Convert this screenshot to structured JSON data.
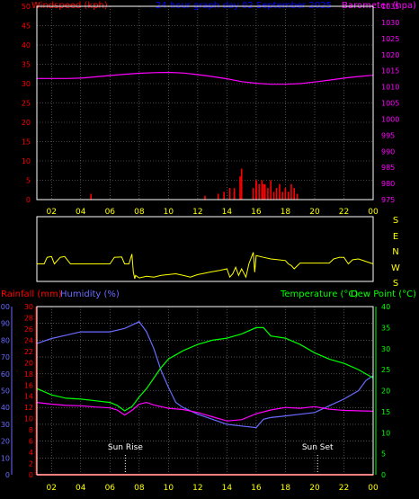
{
  "header": {
    "windspeed_label": "Windspeed (kph)",
    "title": "24 hour graph day  02 September 2025",
    "barometer_label": "Barometer (hpa)"
  },
  "wind_dir_labels": [
    "S",
    "E",
    "N",
    "W",
    "S"
  ],
  "bottom_labels": {
    "rainfall": "Rainfall (mm)",
    "humidity": "Humidity (%)",
    "temperature": "Temperature (°C)",
    "dewpoint": "Dew Point (°C)",
    "sun_rise": "Sun Rise",
    "sun_set": "Sun Set"
  },
  "colors": {
    "background": "#000000",
    "grid": "#808080",
    "frame": "#ffffff",
    "windspeed": "#ff0000",
    "barometer": "#ff00ff",
    "wind_dir": "#ffff00",
    "title": "#0000ff",
    "humidity": "#6a6aff",
    "temperature": "#00ff00",
    "dewpoint": "#ff00ff",
    "rainfall": "#ff0000",
    "axis_x": "#ffff00"
  },
  "chart_data": [
    {
      "id": "wind_baro",
      "type": "line",
      "x_ticks": [
        "02",
        "04",
        "06",
        "08",
        "10",
        "12",
        "14",
        "16",
        "18",
        "20",
        "22",
        "00"
      ],
      "xlim": [
        1,
        24
      ],
      "y_left": {
        "label": "Windspeed (kph)",
        "lim": [
          0,
          50
        ],
        "ticks": [
          0,
          5,
          10,
          15,
          20,
          25,
          30,
          35,
          40,
          45,
          50
        ]
      },
      "y_right": {
        "label": "Barometer (hpa)",
        "lim": [
          975,
          1035
        ],
        "ticks": [
          975,
          980,
          985,
          990,
          995,
          1000,
          1005,
          1010,
          1015,
          1020,
          1025,
          1030,
          1035
        ]
      },
      "series": [
        {
          "name": "Barometer (hpa)",
          "axis": "right",
          "color": "#ff00ff",
          "x": [
            1,
            2,
            3,
            4,
            5,
            6,
            7,
            8,
            9,
            10,
            11,
            12,
            13,
            14,
            15,
            16,
            17,
            18,
            19,
            20,
            21,
            22,
            23,
            24
          ],
          "values": [
            1012.6,
            1012.6,
            1012.6,
            1012.7,
            1013.1,
            1013.5,
            1013.9,
            1014.2,
            1014.4,
            1014.5,
            1014.3,
            1013.8,
            1013.2,
            1012.5,
            1011.6,
            1011.1,
            1010.8,
            1010.8,
            1011.0,
            1011.5,
            1012.1,
            1012.7,
            1013.2,
            1013.6
          ]
        },
        {
          "name": "Windspeed (kph)",
          "axis": "left",
          "type": "bar",
          "color": "#ff0000",
          "x": [
            4.7,
            12.5,
            13.4,
            13.8,
            14.2,
            14.5,
            14.9,
            15.8,
            16.0,
            16.2,
            16.4,
            16.6,
            16.8,
            17.0,
            17.2,
            17.4,
            17.6,
            17.8,
            18.0,
            18.2,
            18.4,
            18.6,
            18.8
          ],
          "values": [
            1.5,
            1,
            1.5,
            2,
            3,
            2,
            6,
            3,
            5,
            4,
            5,
            4,
            3,
            5,
            2,
            3,
            4,
            2,
            3,
            2,
            4,
            3,
            1.5
          ]
        },
        {
          "name": "Gust (kph)",
          "axis": "left",
          "type": "bar",
          "color": "#ff0000",
          "x": [
            14.5,
            15.0,
            16.0,
            16.5
          ],
          "values": [
            3,
            8,
            5,
            4
          ]
        }
      ]
    },
    {
      "id": "wind_direction",
      "type": "line",
      "xlim": [
        1,
        24
      ],
      "ylim": [
        0,
        360
      ],
      "y_labels": [
        "S",
        "E",
        "N",
        "W",
        "S"
      ],
      "series": [
        {
          "name": "Wind direction",
          "color": "#ffff00",
          "x": [
            1,
            1.5,
            1.7,
            2.0,
            2.2,
            2.6,
            2.9,
            3.3,
            3.6,
            4.0,
            6.0,
            6.3,
            6.8,
            7.0,
            7.3,
            7.5,
            7.6,
            7.7,
            7.75,
            8.0,
            8.5,
            9,
            9.5,
            10,
            10.5,
            11,
            11.5,
            12,
            12.3,
            12.8,
            13.5,
            14.0,
            14.2,
            14.4,
            14.6,
            14.8,
            15.0,
            15.3,
            15.5,
            15.8,
            15.9,
            16.0,
            16.5,
            17,
            17.5,
            18,
            18.2,
            18.4,
            18.6,
            19,
            20,
            21.0,
            21.3,
            21.7,
            22.0,
            22.3,
            22.6,
            23.0,
            24
          ],
          "values": [
            90,
            90,
            130,
            135,
            90,
            130,
            135,
            90,
            90,
            90,
            90,
            130,
            132,
            90,
            90,
            150,
            40,
            0,
            20,
            5,
            15,
            10,
            20,
            25,
            30,
            20,
            10,
            25,
            30,
            40,
            50,
            60,
            10,
            30,
            70,
            20,
            60,
            10,
            90,
            160,
            40,
            140,
            130,
            120,
            115,
            110,
            90,
            80,
            60,
            95,
            95,
            95,
            120,
            130,
            130,
            90,
            115,
            120,
            90
          ]
        }
      ]
    },
    {
      "id": "temp_humidity",
      "type": "line",
      "x_ticks": [
        "02",
        "04",
        "06",
        "08",
        "10",
        "12",
        "14",
        "16",
        "18",
        "20",
        "22",
        "00"
      ],
      "xlim": [
        1,
        24
      ],
      "y_left_humidity": {
        "label": "Humidity (%)",
        "lim": [
          0,
          100
        ],
        "ticks": [
          0,
          10,
          20,
          30,
          40,
          50,
          60,
          70,
          80,
          90,
          100
        ]
      },
      "y_left_rainfall": {
        "label": "Rainfall (mm)",
        "lim": [
          0,
          30
        ],
        "ticks": [
          0,
          2,
          4,
          6,
          8,
          10,
          12,
          14,
          16,
          18,
          20,
          22,
          24,
          26,
          28,
          30
        ]
      },
      "y_right": {
        "label": "Temperature (°C)",
        "lim": [
          0,
          40
        ],
        "ticks": [
          0,
          5,
          10,
          15,
          20,
          25,
          30,
          35,
          40
        ]
      },
      "annotations": [
        {
          "text": "Sun Rise",
          "x": 7.05
        },
        {
          "text": "Sun Set",
          "x": 20.2
        }
      ],
      "series": [
        {
          "name": "Humidity (%)",
          "axis": "left_humidity",
          "color": "#6a6aff",
          "x": [
            1,
            2,
            3,
            4,
            5,
            6,
            7,
            7.5,
            8,
            8.5,
            9,
            9.5,
            10,
            10.5,
            11,
            12,
            13,
            14,
            15,
            16,
            16.5,
            17,
            18,
            19,
            20,
            21,
            22,
            23,
            23.5,
            24
          ],
          "values": [
            78,
            81,
            83,
            85,
            85,
            85,
            87,
            89,
            91,
            85,
            75,
            62,
            52,
            43,
            40,
            36,
            33,
            30,
            29,
            28,
            33,
            34,
            35,
            36,
            37,
            41,
            45,
            50,
            56,
            59
          ]
        },
        {
          "name": "Temperature (°C)",
          "axis": "right",
          "color": "#00ff00",
          "x": [
            1,
            2,
            3,
            4,
            5,
            6,
            6.5,
            7,
            7.5,
            8,
            8.5,
            9,
            9.5,
            10,
            11,
            12,
            13,
            14,
            15,
            16,
            16.5,
            17,
            18,
            19,
            20,
            21,
            22,
            23,
            24
          ],
          "values": [
            20.5,
            19.0,
            18.2,
            18.0,
            17.6,
            17.2,
            16.5,
            15.2,
            16.2,
            18.5,
            20.5,
            23,
            25.5,
            27.5,
            29.5,
            31.0,
            32.0,
            32.5,
            33.5,
            35.0,
            35.0,
            33.0,
            32.5,
            31.0,
            29.0,
            27.5,
            26.5,
            25.0,
            23.0
          ]
        },
        {
          "name": "Dew Point (°C)",
          "axis": "right",
          "color": "#ff00ff",
          "x": [
            1,
            2,
            3,
            4,
            5,
            6,
            6.5,
            7,
            7.5,
            8,
            8.5,
            9,
            10,
            11,
            12,
            13,
            14,
            15,
            16,
            17,
            18,
            19,
            20,
            21,
            22,
            23,
            24
          ],
          "values": [
            17.2,
            16.8,
            16.5,
            16.4,
            16.1,
            15.9,
            15.4,
            14.2,
            15.3,
            16.8,
            17.2,
            16.6,
            15.8,
            15.5,
            14.8,
            13.8,
            12.8,
            13.1,
            14.5,
            15.4,
            16.0,
            15.8,
            16.2,
            15.6,
            15.3,
            15.2,
            15.1
          ]
        },
        {
          "name": "Rainfall (mm)",
          "axis": "left_rainfall",
          "color": "#ff0000",
          "x": [
            1,
            24
          ],
          "values": [
            0,
            0
          ]
        }
      ]
    }
  ]
}
